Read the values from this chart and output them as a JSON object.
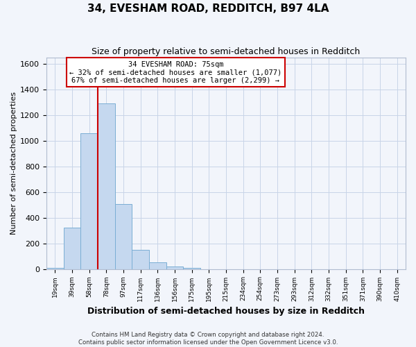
{
  "title": "34, EVESHAM ROAD, REDDITCH, B97 4LA",
  "subtitle": "Size of property relative to semi-detached houses in Redditch",
  "xlabel": "Distribution of semi-detached houses by size in Redditch",
  "ylabel": "Number of semi-detached properties",
  "bar_labels": [
    "19sqm",
    "39sqm",
    "58sqm",
    "78sqm",
    "97sqm",
    "117sqm",
    "136sqm",
    "156sqm",
    "175sqm",
    "195sqm",
    "215sqm",
    "234sqm",
    "254sqm",
    "273sqm",
    "293sqm",
    "312sqm",
    "332sqm",
    "351sqm",
    "371sqm",
    "390sqm",
    "410sqm"
  ],
  "bar_values": [
    10,
    325,
    1060,
    1290,
    505,
    150,
    52,
    22,
    8,
    0,
    0,
    0,
    0,
    0,
    0,
    0,
    0,
    0,
    0,
    0,
    0
  ],
  "bar_color": "#c5d8ef",
  "bar_edge_color": "#7aaed4",
  "vline_color": "#cc0000",
  "ylim": [
    0,
    1650
  ],
  "yticks": [
    0,
    200,
    400,
    600,
    800,
    1000,
    1200,
    1400,
    1600
  ],
  "annotation_title": "34 EVESHAM ROAD: 75sqm",
  "annotation_line1": "← 32% of semi-detached houses are smaller (1,077)",
  "annotation_line2": "67% of semi-detached houses are larger (2,299) →",
  "footer1": "Contains HM Land Registry data © Crown copyright and database right 2024.",
  "footer2": "Contains public sector information licensed under the Open Government Licence v3.0.",
  "background_color": "#f2f5fb",
  "plot_bg_color": "#f2f5fb",
  "grid_color": "#c8d4e8",
  "title_fontsize": 11,
  "subtitle_fontsize": 9
}
